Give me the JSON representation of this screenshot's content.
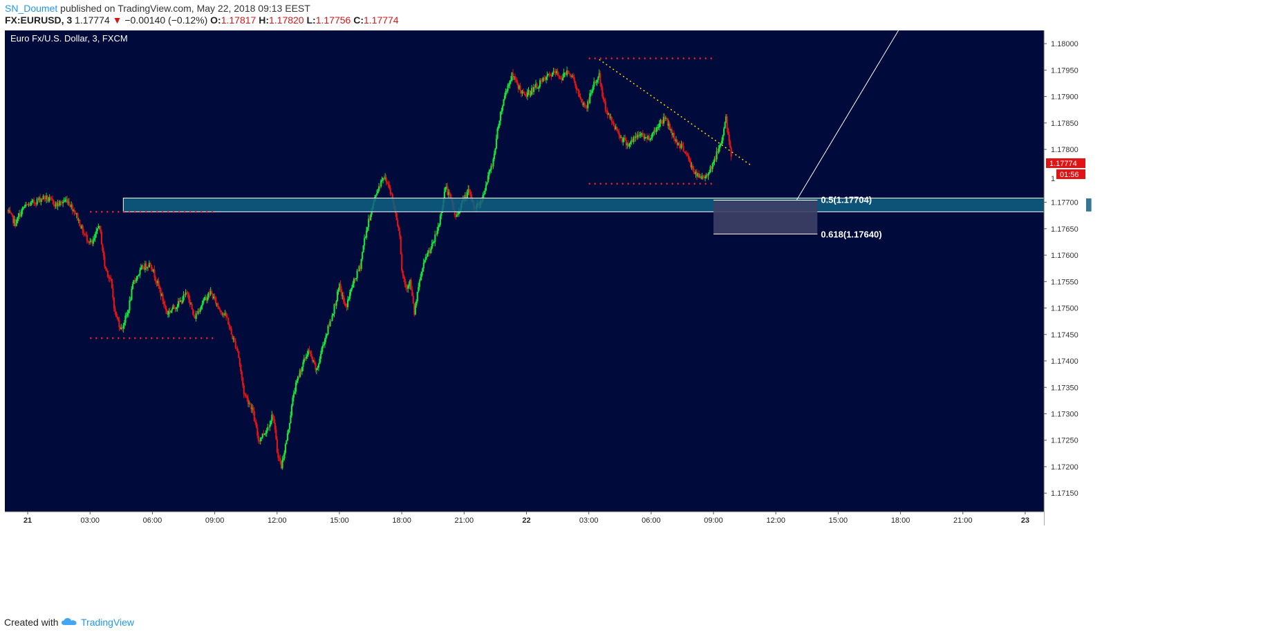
{
  "header": {
    "author": "SN_Doumet",
    "published": "published on TradingView.com, May 22, 2018 09:13 EEST",
    "symbol": "FX:EURUSD, 3",
    "last": "1.17774",
    "arrow": "▼",
    "change": "−0.00140 (−0.12%)",
    "o_label": "O:",
    "o": "1.17817",
    "h_label": "H:",
    "h": "1.17820",
    "l_label": "L:",
    "l": "1.17756",
    "c_label": "C:",
    "c": "1.17774"
  },
  "footer": {
    "created": "Created with",
    "brand": "TradingView",
    "logo_icon": "tradingview-cloud-icon"
  },
  "colors": {
    "background": "#000a3b",
    "up": "#19e03a",
    "down": "#e01414",
    "zone_fill": "#0f5f82",
    "zone_stroke": "#ffffff",
    "fib_fill": "#3d3f66",
    "level_dots": "#ff2222",
    "trendline": "#ffdd00",
    "price_badge": "#e01414",
    "brand": "#2196f3"
  },
  "chart_data": {
    "type": "candlestick",
    "title": "Euro Fx/U.S. Dollar, 3, FXCM",
    "timeframe": "3",
    "ylim": [
      1.17115,
      1.18025
    ],
    "y_ticks": [
      "1.18000",
      "1.17950",
      "1.17900",
      "1.17850",
      "1.17800",
      "1.17700",
      "1.17650",
      "1.17600",
      "1.17550",
      "1.17500",
      "1.17450",
      "1.17400",
      "1.17350",
      "1.17300",
      "1.17250",
      "1.17200",
      "1.17150"
    ],
    "partial_tick": "1",
    "x_ticks": [
      "21",
      "03:00",
      "06:00",
      "09:00",
      "12:00",
      "15:00",
      "18:00",
      "21:00",
      "22",
      "03:00",
      "06:00",
      "09:00",
      "12:00",
      "15:00",
      "18:00",
      "21:00",
      "23"
    ],
    "x_tick_hours": [
      0,
      3,
      6,
      9,
      12,
      15,
      18,
      21,
      24,
      27,
      30,
      33,
      36,
      39,
      42,
      45,
      48
    ],
    "xlim_hours": [
      -1.1,
      48.9
    ],
    "last_price": "1.17774",
    "countdown": "01:56",
    "path": [
      [
        -1.0,
        1.17685
      ],
      [
        -0.6,
        1.1766
      ],
      [
        -0.2,
        1.1769
      ],
      [
        0.3,
        1.177
      ],
      [
        0.8,
        1.1771
      ],
      [
        1.4,
        1.17695
      ],
      [
        1.9,
        1.17705
      ],
      [
        2.3,
        1.1768
      ],
      [
        2.7,
        1.1764
      ],
      [
        3.1,
        1.1762
      ],
      [
        3.3,
        1.1764
      ],
      [
        3.4,
        1.1766
      ],
      [
        3.5,
        1.1764
      ],
      [
        3.7,
        1.1758
      ],
      [
        4.0,
        1.1755
      ],
      [
        4.2,
        1.1749
      ],
      [
        4.5,
        1.1746
      ],
      [
        4.8,
        1.1749
      ],
      [
        5.1,
        1.1755
      ],
      [
        5.5,
        1.17575
      ],
      [
        5.9,
        1.17585
      ],
      [
        6.3,
        1.1754
      ],
      [
        6.7,
        1.1749
      ],
      [
        7.0,
        1.175
      ],
      [
        7.3,
        1.1751
      ],
      [
        7.7,
        1.1753
      ],
      [
        8.0,
        1.1748
      ],
      [
        8.4,
        1.1751
      ],
      [
        8.8,
        1.1753
      ],
      [
        9.2,
        1.175
      ],
      [
        9.6,
        1.1748
      ],
      [
        9.8,
        1.1745
      ],
      [
        10.1,
        1.1742
      ],
      [
        10.4,
        1.1734
      ],
      [
        10.8,
        1.1731
      ],
      [
        11.1,
        1.1725
      ],
      [
        11.5,
        1.1727
      ],
      [
        11.8,
        1.173
      ],
      [
        12.0,
        1.1723
      ],
      [
        12.2,
        1.172
      ],
      [
        12.5,
        1.1726
      ],
      [
        12.8,
        1.1734
      ],
      [
        13.1,
        1.1738
      ],
      [
        13.5,
        1.1742
      ],
      [
        13.9,
        1.1738
      ],
      [
        14.2,
        1.1743
      ],
      [
        14.6,
        1.1748
      ],
      [
        15.0,
        1.1754
      ],
      [
        15.3,
        1.175
      ],
      [
        15.6,
        1.1754
      ],
      [
        16.0,
        1.1758
      ],
      [
        16.2,
        1.1763
      ],
      [
        16.5,
        1.1768
      ],
      [
        16.8,
        1.1772
      ],
      [
        17.1,
        1.1775
      ],
      [
        17.4,
        1.1773
      ],
      [
        17.7,
        1.1768
      ],
      [
        17.9,
        1.1764
      ],
      [
        18.0,
        1.1757
      ],
      [
        18.2,
        1.1754
      ],
      [
        18.4,
        1.1755
      ],
      [
        18.6,
        1.1749
      ],
      [
        18.9,
        1.1756
      ],
      [
        19.2,
        1.176
      ],
      [
        19.5,
        1.1762
      ],
      [
        19.8,
        1.1766
      ],
      [
        20.1,
        1.1773
      ],
      [
        20.4,
        1.177
      ],
      [
        20.6,
        1.1767
      ],
      [
        20.9,
        1.177
      ],
      [
        21.2,
        1.1772
      ],
      [
        21.5,
        1.1769
      ],
      [
        21.8,
        1.177
      ],
      [
        22.1,
        1.1774
      ],
      [
        22.4,
        1.1778
      ],
      [
        22.7,
        1.1786
      ],
      [
        23.0,
        1.1791
      ],
      [
        23.3,
        1.1794
      ],
      [
        23.6,
        1.1792
      ],
      [
        23.9,
        1.179
      ],
      [
        24.2,
        1.1791
      ],
      [
        24.5,
        1.1792
      ],
      [
        24.8,
        1.1793
      ],
      [
        25.1,
        1.1794
      ],
      [
        25.4,
        1.17945
      ],
      [
        25.7,
        1.17935
      ],
      [
        26.0,
        1.1795
      ],
      [
        26.3,
        1.1793
      ],
      [
        26.6,
        1.1789
      ],
      [
        26.9,
        1.1788
      ],
      [
        27.2,
        1.1792
      ],
      [
        27.5,
        1.1794
      ],
      [
        27.7,
        1.1789
      ],
      [
        28.0,
        1.1786
      ],
      [
        28.3,
        1.1784
      ],
      [
        28.6,
        1.1782
      ],
      [
        28.9,
        1.1781
      ],
      [
        29.2,
        1.1782
      ],
      [
        29.5,
        1.1783
      ],
      [
        29.8,
        1.1782
      ],
      [
        30.1,
        1.1783
      ],
      [
        30.4,
        1.1785
      ],
      [
        30.7,
        1.1786
      ],
      [
        31.0,
        1.1783
      ],
      [
        31.3,
        1.1781
      ],
      [
        31.6,
        1.178
      ],
      [
        31.9,
        1.1777
      ],
      [
        32.2,
        1.1775
      ],
      [
        32.5,
        1.17745
      ],
      [
        32.8,
        1.1776
      ],
      [
        33.1,
        1.17785
      ],
      [
        33.4,
        1.1782
      ],
      [
        33.6,
        1.1786
      ],
      [
        33.75,
        1.1781
      ],
      [
        33.9,
        1.17775
      ]
    ],
    "annotations": {
      "zone": {
        "price_top": 1.17708,
        "price_bottom": 1.17682,
        "hour_start": 4.6,
        "hour_end": 51.2
      },
      "fib_05": {
        "label": "0.5(1.17704)",
        "price": 1.17704
      },
      "fib_0618": {
        "label": "0.618(1.17640)",
        "price": 1.1764
      },
      "fib_box": {
        "hour_start": 33.0,
        "hour_end": 38.0
      },
      "fib_line": {
        "from": [
          37.0,
          1.17704
        ],
        "to": [
          41.9,
          1.1803
        ]
      },
      "dotted_levels": [
        {
          "price": 1.17682,
          "hour_start": 3.0,
          "hour_end": 9.0
        },
        {
          "price": 1.17443,
          "hour_start": 3.0,
          "hour_end": 9.0
        },
        {
          "price": 1.17972,
          "hour_start": 27.0,
          "hour_end": 33.0
        },
        {
          "price": 1.17735,
          "hour_start": 27.0,
          "hour_end": 33.0
        }
      ],
      "trendline": {
        "from": [
          27.5,
          1.1797
        ],
        "to": [
          34.8,
          1.1777
        ]
      }
    }
  }
}
